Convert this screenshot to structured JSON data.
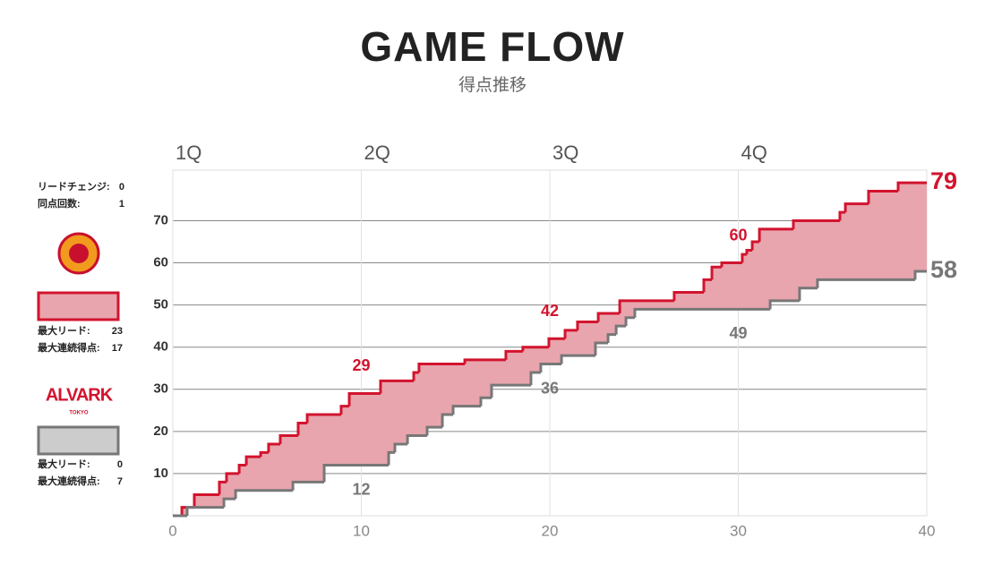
{
  "chart_data": {
    "type": "step",
    "title": "GAME FLOW",
    "subtitle": "得点推移",
    "xlim": [
      0,
      40
    ],
    "xticks": [
      0,
      10,
      20,
      30,
      40
    ],
    "x2ticks": [
      {
        "value": 0,
        "label": "1Q"
      },
      {
        "value": 10,
        "label": "2Q"
      },
      {
        "value": 20,
        "label": "3Q"
      },
      {
        "value": 30,
        "label": "4Q"
      }
    ],
    "ylim": [
      0,
      82
    ],
    "yticks": [
      10,
      20,
      30,
      40,
      50,
      60,
      70
    ],
    "grid": true,
    "fill_color": "#e8a5ae",
    "series": [
      {
        "color": "#d2142e",
        "box_fill": "#e8a5ae",
        "x": [
          0,
          0.48,
          1.14,
          2.47,
          2.85,
          3.52,
          3.9,
          4.66,
          5.08,
          5.7,
          6.65,
          7.13,
          8.93,
          9.36,
          11.02,
          12.78,
          13.06,
          15.49,
          17.67,
          18.57,
          19.95,
          20.81,
          21.47,
          22.57,
          23.71,
          26.6,
          28.17,
          28.6,
          29.12,
          30.21,
          30.45,
          30.74,
          31.12,
          32.92,
          35.39,
          35.68,
          36.91,
          38.48
        ],
        "values": [
          0,
          2,
          5,
          8,
          10,
          12,
          14,
          15,
          17,
          19,
          22,
          24,
          26,
          29,
          32,
          34,
          36,
          37,
          39,
          40,
          42,
          44,
          46,
          48,
          51,
          53,
          56,
          59,
          60,
          62,
          63,
          65,
          68,
          70,
          72,
          74,
          77,
          79
        ]
      },
      {
        "color": "#777777",
        "box_fill": "#cccccc",
        "x": [
          0,
          0.76,
          2.71,
          3.33,
          6.37,
          8.03,
          11.45,
          11.78,
          12.45,
          13.49,
          14.3,
          14.87,
          16.34,
          16.91,
          19.0,
          19.52,
          20.62,
          22.42,
          23.09,
          23.52,
          24.04,
          24.51,
          31.69,
          33.25,
          34.2,
          39.38
        ],
        "values": [
          0,
          2,
          4,
          6,
          8,
          12,
          15,
          17,
          19,
          21,
          24,
          26,
          28,
          31,
          34,
          36,
          38,
          41,
          43,
          45,
          47,
          49,
          51,
          54,
          56,
          58
        ]
      }
    ]
  },
  "stats": {
    "lead_changes": {
      "label": "リードチェンジ:",
      "value": 0
    },
    "ties": {
      "label": "同点回数:",
      "value": 1
    },
    "teams": [
      {
        "max_lead": {
          "label": "最大リード:",
          "value": 23
        },
        "max_run": {
          "label": "最大連続得点:",
          "value": 17
        }
      },
      {
        "logo_name": "ALVARK",
        "logo_city": "TOKYO",
        "max_lead": {
          "label": "最大リード:",
          "value": 0
        },
        "max_run": {
          "label": "最大連続得点:",
          "value": 7
        }
      }
    ]
  }
}
